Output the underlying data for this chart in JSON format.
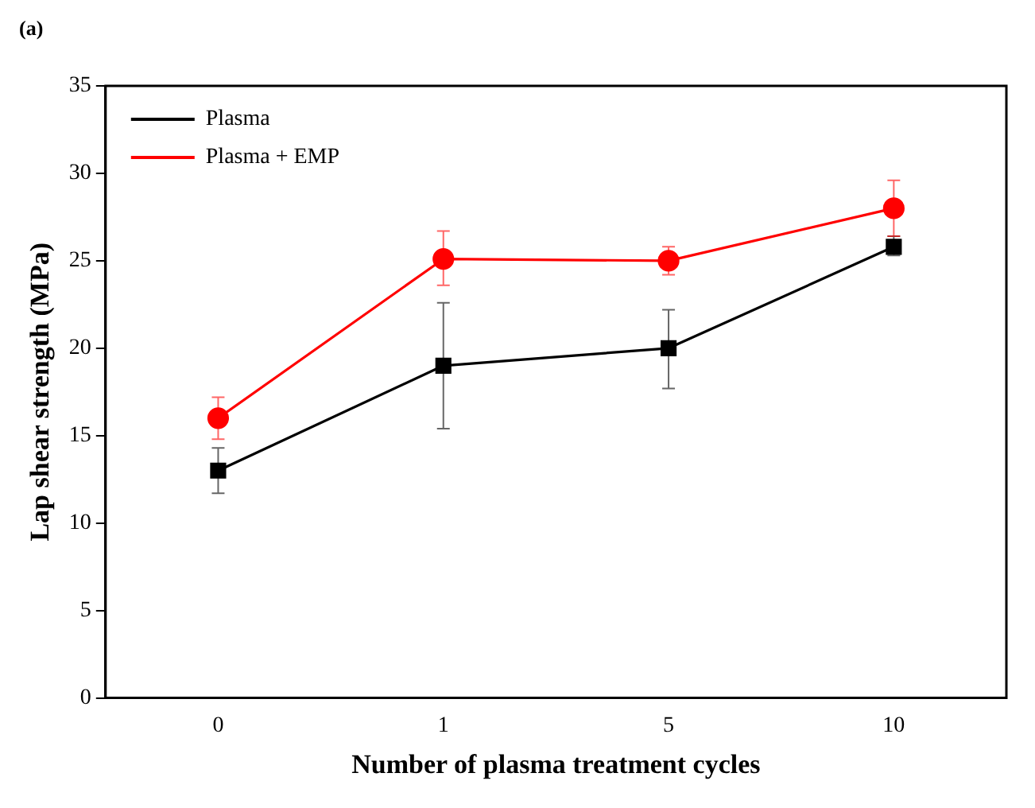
{
  "chart_data": {
    "type": "line",
    "xlabel": "Number of plasma treatment cycles",
    "ylabel": "Lap shear strength (MPa)",
    "annotations": [
      "(a)"
    ],
    "categories": [
      "0",
      "1",
      "5",
      "10"
    ],
    "series": [
      {
        "name": "Plasma",
        "color": "#000000",
        "marker": "square",
        "values": [
          13,
          19,
          20,
          25.8
        ],
        "errors": [
          [
            11.7,
            14.3
          ],
          [
            15.4,
            22.6
          ],
          [
            17.7,
            22.2
          ],
          [
            25.3,
            26.4
          ]
        ]
      },
      {
        "name": "Plasma + EMP",
        "color": "#ff0000",
        "marker": "circle",
        "values": [
          16,
          25.1,
          25,
          28
        ],
        "errors": [
          [
            14.8,
            17.2
          ],
          [
            23.6,
            26.7
          ],
          [
            24.2,
            25.8
          ],
          [
            26.4,
            29.6
          ]
        ]
      }
    ],
    "ylim": [
      0,
      35
    ],
    "yticks": [
      0,
      5,
      10,
      15,
      20,
      25,
      30,
      35
    ],
    "grid": false,
    "legend": "top left"
  }
}
